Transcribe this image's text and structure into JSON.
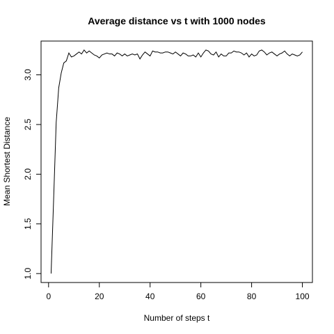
{
  "chart_data": {
    "type": "line",
    "title": "Average distance vs t with 1000 nodes",
    "xlabel": "Number of steps t",
    "ylabel": "Mean Shortest Distance",
    "xlim": [
      1,
      100
    ],
    "ylim": [
      1.0,
      3.25
    ],
    "x_ticks": [
      "0",
      "20",
      "40",
      "60",
      "80",
      "100"
    ],
    "y_ticks": [
      "1.0",
      "1.5",
      "2.0",
      "2.5",
      "3.0"
    ],
    "grid": false,
    "legend": "none",
    "line_color": "#000000",
    "series": [
      {
        "x": [
          1,
          2,
          3,
          4,
          5,
          6,
          7,
          8,
          9,
          10,
          11,
          12,
          13,
          14,
          15,
          16,
          17,
          18,
          19,
          20,
          21,
          22,
          23,
          24,
          25,
          26,
          27,
          28,
          29,
          30,
          31,
          32,
          33,
          34,
          35,
          36,
          37,
          38,
          39,
          40,
          41,
          42,
          43,
          44,
          45,
          46,
          47,
          48,
          49,
          50,
          51,
          52,
          53,
          54,
          55,
          56,
          57,
          58,
          59,
          60,
          61,
          62,
          63,
          64,
          65,
          66,
          67,
          68,
          69,
          70,
          71,
          72,
          73,
          74,
          75,
          76,
          77,
          78,
          79,
          80,
          81,
          82,
          83,
          84,
          85,
          86,
          87,
          88,
          89,
          90,
          91,
          92,
          93,
          94,
          95,
          96,
          97,
          98,
          99,
          100
        ],
        "values": [
          1.0,
          1.75,
          2.52,
          2.87,
          3.02,
          3.12,
          3.14,
          3.22,
          3.18,
          3.19,
          3.21,
          3.23,
          3.21,
          3.25,
          3.22,
          3.24,
          3.22,
          3.2,
          3.19,
          3.17,
          3.2,
          3.21,
          3.22,
          3.21,
          3.21,
          3.19,
          3.22,
          3.21,
          3.19,
          3.21,
          3.19,
          3.2,
          3.21,
          3.2,
          3.21,
          3.16,
          3.2,
          3.23,
          3.21,
          3.19,
          3.24,
          3.23,
          3.23,
          3.22,
          3.22,
          3.23,
          3.23,
          3.22,
          3.21,
          3.23,
          3.21,
          3.19,
          3.22,
          3.21,
          3.19,
          3.19,
          3.2,
          3.18,
          3.22,
          3.18,
          3.22,
          3.25,
          3.24,
          3.21,
          3.2,
          3.23,
          3.18,
          3.21,
          3.19,
          3.19,
          3.22,
          3.22,
          3.24,
          3.23,
          3.23,
          3.22,
          3.2,
          3.22,
          3.18,
          3.21,
          3.19,
          3.2,
          3.24,
          3.25,
          3.23,
          3.2,
          3.22,
          3.23,
          3.21,
          3.19,
          3.21,
          3.22,
          3.24,
          3.21,
          3.19,
          3.21,
          3.2,
          3.19,
          3.2,
          3.23
        ]
      }
    ]
  }
}
